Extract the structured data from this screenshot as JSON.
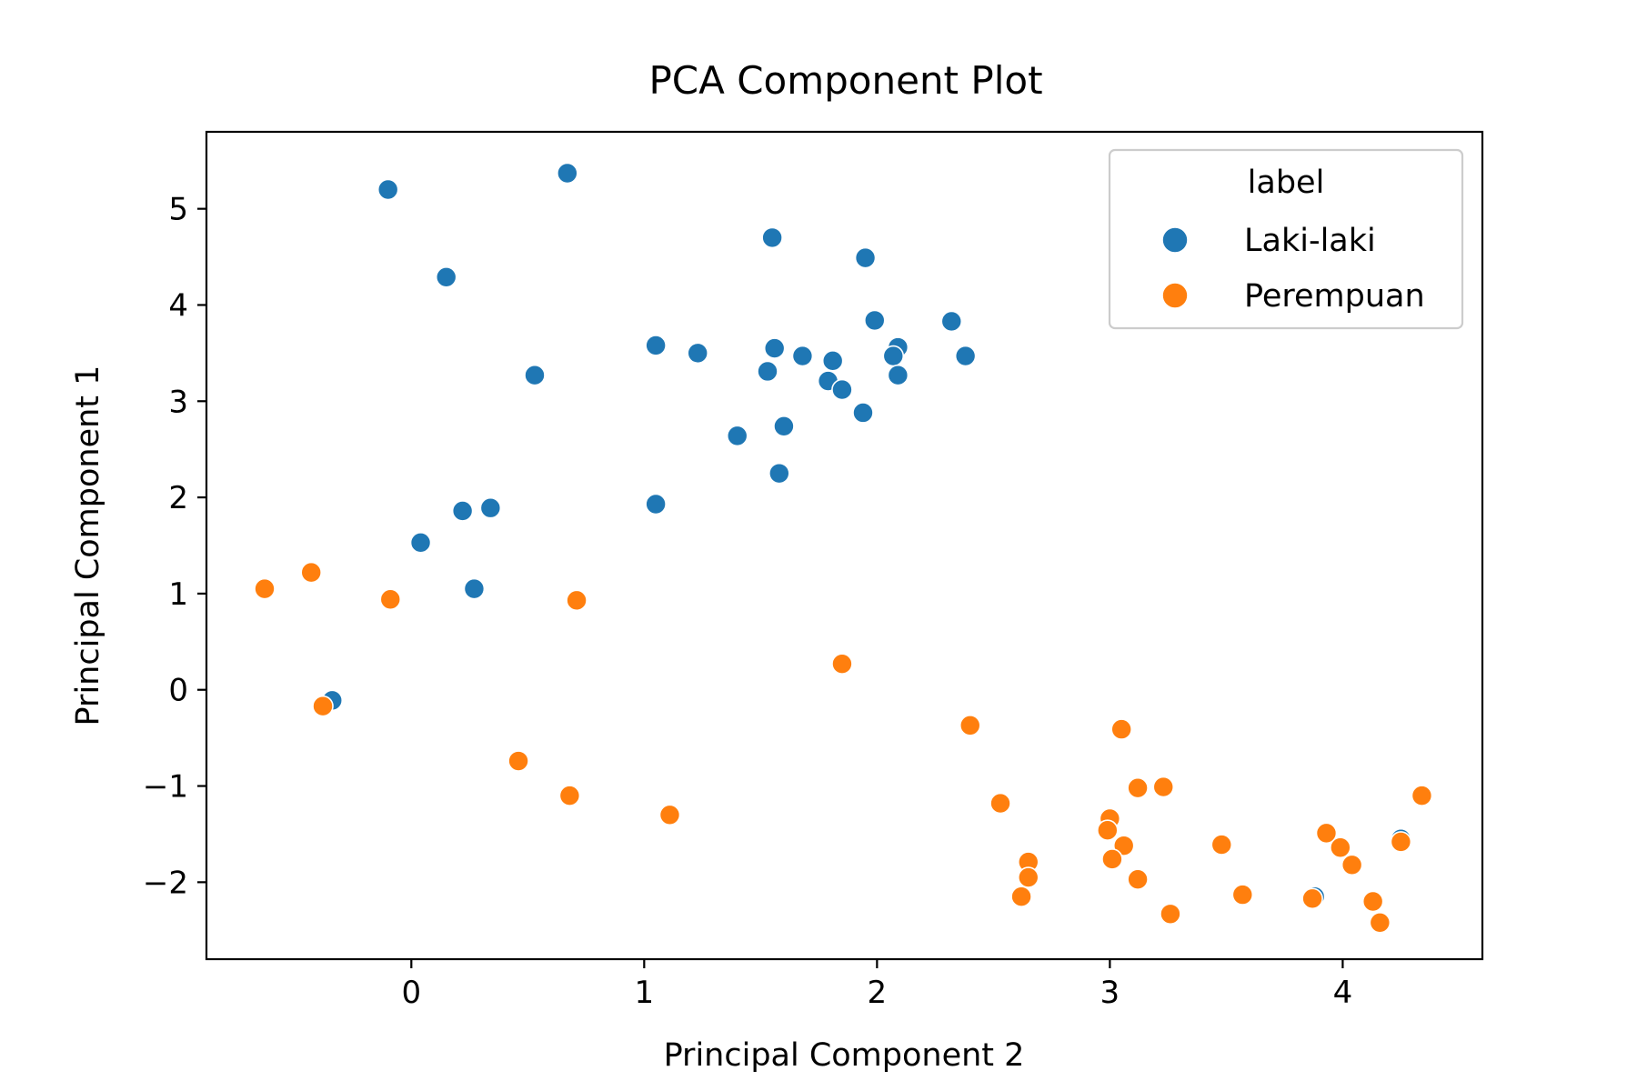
{
  "chart_data": {
    "type": "scatter",
    "title": "PCA Component Plot",
    "xlabel": "Principal Component 2",
    "ylabel": "Principal Component 1",
    "xlim": [
      -0.88,
      4.6
    ],
    "ylim": [
      -2.8,
      5.8
    ],
    "xticks": [
      0,
      1,
      2,
      3,
      4
    ],
    "yticks": [
      -2,
      -1,
      0,
      1,
      2,
      3,
      4,
      5
    ],
    "xtick_labels": [
      "0",
      "1",
      "2",
      "3",
      "4"
    ],
    "ytick_labels": [
      "−2",
      "−1",
      "0",
      "1",
      "2",
      "3",
      "4",
      "5"
    ],
    "grid": false,
    "legend": {
      "title": "label",
      "position": "top-right"
    },
    "series": [
      {
        "name": "Laki-laki",
        "color": "#1f77b4",
        "points": [
          [
            -0.1,
            5.2
          ],
          [
            0.67,
            5.37
          ],
          [
            0.15,
            4.29
          ],
          [
            1.55,
            4.7
          ],
          [
            1.95,
            4.49
          ],
          [
            1.05,
            3.58
          ],
          [
            1.23,
            3.5
          ],
          [
            1.56,
            3.55
          ],
          [
            1.68,
            3.47
          ],
          [
            1.53,
            3.31
          ],
          [
            1.81,
            3.42
          ],
          [
            1.99,
            3.84
          ],
          [
            2.09,
            3.56
          ],
          [
            2.07,
            3.47
          ],
          [
            2.32,
            3.83
          ],
          [
            2.38,
            3.47
          ],
          [
            1.79,
            3.21
          ],
          [
            1.85,
            3.12
          ],
          [
            2.09,
            3.27
          ],
          [
            1.94,
            2.88
          ],
          [
            0.53,
            3.27
          ],
          [
            1.4,
            2.64
          ],
          [
            1.6,
            2.74
          ],
          [
            1.58,
            2.25
          ],
          [
            1.05,
            1.93
          ],
          [
            0.22,
            1.86
          ],
          [
            0.34,
            1.89
          ],
          [
            0.04,
            1.53
          ],
          [
            0.27,
            1.05
          ],
          [
            -0.34,
            -0.11
          ],
          [
            3.88,
            -2.15
          ],
          [
            4.25,
            -1.55
          ]
        ]
      },
      {
        "name": "Perempuan",
        "color": "#ff7f0e",
        "points": [
          [
            -0.63,
            1.05
          ],
          [
            -0.43,
            1.22
          ],
          [
            -0.09,
            0.94
          ],
          [
            0.71,
            0.93
          ],
          [
            1.85,
            0.27
          ],
          [
            -0.38,
            -0.17
          ],
          [
            0.46,
            -0.74
          ],
          [
            0.68,
            -1.1
          ],
          [
            1.11,
            -1.3
          ],
          [
            2.4,
            -0.37
          ],
          [
            3.05,
            -0.41
          ],
          [
            3.12,
            -1.02
          ],
          [
            3.23,
            -1.01
          ],
          [
            2.53,
            -1.18
          ],
          [
            3.0,
            -1.34
          ],
          [
            2.99,
            -1.46
          ],
          [
            3.06,
            -1.62
          ],
          [
            3.01,
            -1.76
          ],
          [
            3.12,
            -1.97
          ],
          [
            2.65,
            -1.79
          ],
          [
            2.65,
            -1.95
          ],
          [
            2.62,
            -2.15
          ],
          [
            3.26,
            -2.33
          ],
          [
            3.48,
            -1.61
          ],
          [
            3.57,
            -2.13
          ],
          [
            3.87,
            -2.17
          ],
          [
            3.93,
            -1.49
          ],
          [
            3.99,
            -1.64
          ],
          [
            4.04,
            -1.82
          ],
          [
            4.13,
            -2.2
          ],
          [
            4.16,
            -2.42
          ],
          [
            4.25,
            -1.58
          ],
          [
            4.34,
            -1.1
          ]
        ]
      }
    ]
  }
}
